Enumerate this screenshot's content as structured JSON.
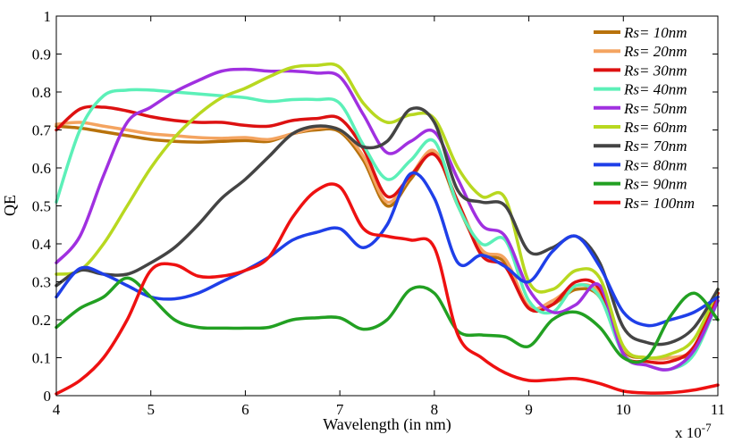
{
  "chart_data": {
    "type": "line",
    "title": "",
    "xlabel": "Wavelength (in nm)",
    "ylabel": "QE",
    "x_multiplier": "x 10",
    "x_multiplier_exp": "-7",
    "xlim": [
      4,
      11
    ],
    "ylim": [
      0,
      1
    ],
    "x_ticks": [
      4,
      5,
      6,
      7,
      8,
      9,
      10,
      11
    ],
    "x_tick_labels": [
      "4",
      "5",
      "6",
      "7",
      "8",
      "9",
      "10",
      "11"
    ],
    "y_ticks": [
      0,
      0.1,
      0.2,
      0.3,
      0.4,
      0.5,
      0.6,
      0.7,
      0.8,
      0.9,
      1
    ],
    "y_tick_labels": [
      "0",
      "0.1",
      "0.2",
      "0.3",
      "0.4",
      "0.5",
      "0.6",
      "0.7",
      "0.8",
      "0.9",
      "1"
    ],
    "grid": false,
    "legend_position": "top-right",
    "x": [
      4.0,
      4.25,
      4.5,
      4.75,
      5.0,
      5.25,
      5.5,
      5.75,
      6.0,
      6.25,
      6.5,
      6.75,
      7.0,
      7.25,
      7.5,
      7.75,
      8.0,
      8.25,
      8.5,
      8.75,
      9.0,
      9.25,
      9.5,
      9.75,
      10.0,
      10.25,
      10.5,
      10.75,
      11.0
    ],
    "series": [
      {
        "name": "Rs= 10nm",
        "color": "#b8720c",
        "values": [
          0.71,
          0.705,
          0.695,
          0.685,
          0.675,
          0.67,
          0.668,
          0.67,
          0.672,
          0.67,
          0.69,
          0.7,
          0.695,
          0.62,
          0.5,
          0.57,
          0.64,
          0.5,
          0.38,
          0.35,
          0.23,
          0.24,
          0.28,
          0.26,
          0.12,
          0.1,
          0.1,
          0.12,
          0.27
        ]
      },
      {
        "name": "Rs= 20nm",
        "color": "#f4a460",
        "values": [
          0.715,
          0.72,
          0.71,
          0.7,
          0.69,
          0.685,
          0.68,
          0.678,
          0.68,
          0.675,
          0.69,
          0.705,
          0.7,
          0.63,
          0.51,
          0.58,
          0.645,
          0.51,
          0.385,
          0.36,
          0.235,
          0.25,
          0.29,
          0.27,
          0.125,
          0.1,
          0.1,
          0.125,
          0.26
        ]
      },
      {
        "name": "Rs= 30nm",
        "color": "#dd1111",
        "values": [
          0.7,
          0.755,
          0.76,
          0.75,
          0.735,
          0.725,
          0.72,
          0.72,
          0.712,
          0.71,
          0.725,
          0.73,
          0.73,
          0.65,
          0.525,
          0.58,
          0.635,
          0.51,
          0.37,
          0.34,
          0.23,
          0.24,
          0.3,
          0.28,
          0.11,
          0.09,
          0.09,
          0.13,
          0.27
        ]
      },
      {
        "name": "Rs= 40nm",
        "color": "#5cf0b8",
        "values": [
          0.51,
          0.7,
          0.79,
          0.805,
          0.805,
          0.8,
          0.795,
          0.79,
          0.785,
          0.775,
          0.78,
          0.78,
          0.77,
          0.66,
          0.57,
          0.62,
          0.67,
          0.5,
          0.4,
          0.41,
          0.25,
          0.22,
          0.29,
          0.26,
          0.11,
          0.08,
          0.07,
          0.11,
          0.25
        ]
      },
      {
        "name": "Rs= 50nm",
        "color": "#a030e0",
        "values": [
          0.35,
          0.42,
          0.58,
          0.72,
          0.76,
          0.8,
          0.83,
          0.855,
          0.86,
          0.855,
          0.855,
          0.85,
          0.84,
          0.74,
          0.64,
          0.67,
          0.695,
          0.57,
          0.45,
          0.42,
          0.28,
          0.22,
          0.24,
          0.29,
          0.11,
          0.08,
          0.07,
          0.12,
          0.25
        ]
      },
      {
        "name": "Rs= 60nm",
        "color": "#b8d820",
        "values": [
          0.32,
          0.33,
          0.4,
          0.5,
          0.6,
          0.68,
          0.74,
          0.785,
          0.81,
          0.84,
          0.865,
          0.87,
          0.865,
          0.77,
          0.72,
          0.74,
          0.73,
          0.6,
          0.525,
          0.52,
          0.3,
          0.28,
          0.33,
          0.31,
          0.13,
          0.1,
          0.11,
          0.15,
          0.28
        ]
      },
      {
        "name": "Rs= 70nm",
        "color": "#444444",
        "values": [
          0.29,
          0.33,
          0.32,
          0.32,
          0.35,
          0.39,
          0.45,
          0.52,
          0.57,
          0.63,
          0.69,
          0.71,
          0.7,
          0.655,
          0.67,
          0.755,
          0.72,
          0.54,
          0.51,
          0.5,
          0.38,
          0.39,
          0.42,
          0.35,
          0.18,
          0.14,
          0.14,
          0.18,
          0.28
        ]
      },
      {
        "name": "Rs= 80nm",
        "color": "#1f3fe8",
        "values": [
          0.26,
          0.335,
          0.32,
          0.29,
          0.26,
          0.255,
          0.27,
          0.3,
          0.33,
          0.365,
          0.41,
          0.43,
          0.44,
          0.39,
          0.45,
          0.585,
          0.52,
          0.35,
          0.37,
          0.34,
          0.3,
          0.38,
          0.42,
          0.34,
          0.22,
          0.185,
          0.2,
          0.22,
          0.26
        ]
      },
      {
        "name": "Rs= 90nm",
        "color": "#22a022",
        "values": [
          0.18,
          0.23,
          0.26,
          0.31,
          0.26,
          0.2,
          0.18,
          0.178,
          0.178,
          0.18,
          0.2,
          0.205,
          0.205,
          0.175,
          0.2,
          0.28,
          0.27,
          0.17,
          0.16,
          0.155,
          0.13,
          0.2,
          0.22,
          0.18,
          0.1,
          0.1,
          0.21,
          0.27,
          0.2
        ]
      },
      {
        "name": "Rs= 100nm",
        "color": "#ee1111",
        "values": [
          0.005,
          0.04,
          0.1,
          0.2,
          0.33,
          0.345,
          0.315,
          0.315,
          0.33,
          0.365,
          0.47,
          0.54,
          0.55,
          0.44,
          0.42,
          0.41,
          0.39,
          0.16,
          0.1,
          0.06,
          0.04,
          0.042,
          0.045,
          0.032,
          0.012,
          0.007,
          0.008,
          0.015,
          0.028
        ]
      }
    ]
  }
}
